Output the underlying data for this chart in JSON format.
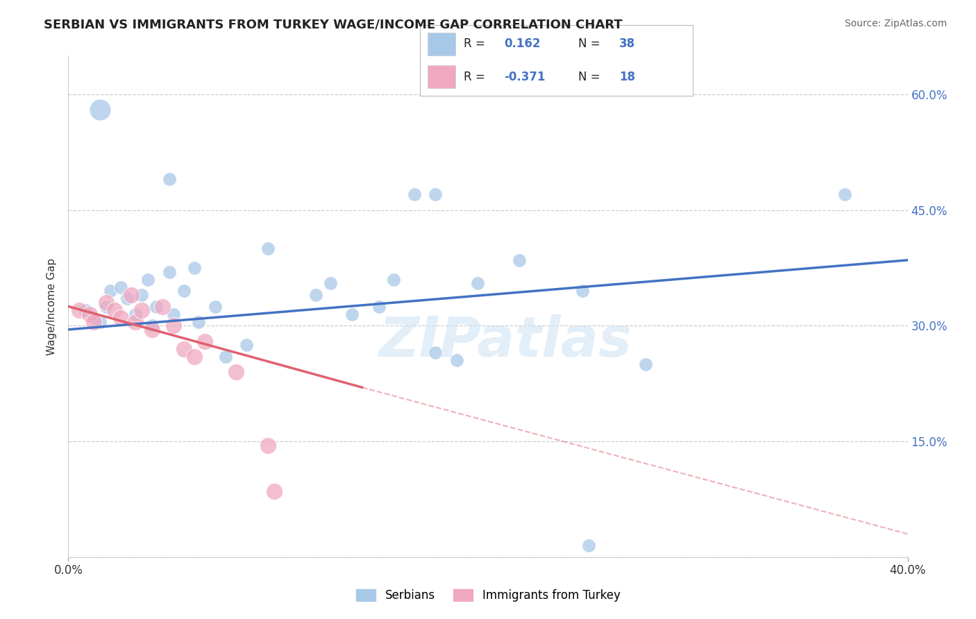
{
  "title": "SERBIAN VS IMMIGRANTS FROM TURKEY WAGE/INCOME GAP CORRELATION CHART",
  "source": "Source: ZipAtlas.com",
  "ylabel": "Wage/Income Gap",
  "ytick_values": [
    0.0,
    0.15,
    0.3,
    0.45,
    0.6
  ],
  "ytick_labels_right": [
    "",
    "15.0%",
    "30.0%",
    "45.0%",
    "60.0%"
  ],
  "xrange": [
    0.0,
    0.4
  ],
  "yrange": [
    0.0,
    0.65
  ],
  "watermark": "ZIPatlas",
  "bottom_legend": [
    "Serbians",
    "Immigrants from Turkey"
  ],
  "serbian_color": "#a8c8e8",
  "turkey_color": "#f0a8c0",
  "serbian_line_color": "#4472c4",
  "turkey_line_color": "#e06070",
  "background_color": "#ffffff",
  "grid_color": "#cccccc",
  "title_color": "#222222",
  "source_color": "#666666",
  "serbian_dots": [
    [
      0.008,
      0.32
    ],
    [
      0.012,
      0.31
    ],
    [
      0.015,
      0.305
    ],
    [
      0.018,
      0.325
    ],
    [
      0.02,
      0.345
    ],
    [
      0.025,
      0.35
    ],
    [
      0.028,
      0.335
    ],
    [
      0.032,
      0.315
    ],
    [
      0.035,
      0.34
    ],
    [
      0.038,
      0.36
    ],
    [
      0.04,
      0.3
    ],
    [
      0.042,
      0.325
    ],
    [
      0.048,
      0.37
    ],
    [
      0.05,
      0.315
    ],
    [
      0.055,
      0.345
    ],
    [
      0.06,
      0.375
    ],
    [
      0.062,
      0.305
    ],
    [
      0.07,
      0.325
    ],
    [
      0.075,
      0.26
    ],
    [
      0.085,
      0.275
    ],
    [
      0.095,
      0.4
    ],
    [
      0.118,
      0.34
    ],
    [
      0.125,
      0.355
    ],
    [
      0.135,
      0.315
    ],
    [
      0.148,
      0.325
    ],
    [
      0.155,
      0.36
    ],
    [
      0.175,
      0.265
    ],
    [
      0.185,
      0.255
    ],
    [
      0.195,
      0.355
    ],
    [
      0.215,
      0.385
    ],
    [
      0.245,
      0.345
    ],
    [
      0.275,
      0.25
    ],
    [
      0.165,
      0.47
    ],
    [
      0.175,
      0.47
    ],
    [
      0.015,
      0.58
    ],
    [
      0.048,
      0.49
    ],
    [
      0.248,
      0.015
    ],
    [
      0.37,
      0.47
    ]
  ],
  "serbian_sizes": [
    200,
    200,
    200,
    200,
    200,
    200,
    200,
    200,
    200,
    200,
    200,
    200,
    200,
    200,
    200,
    200,
    200,
    200,
    200,
    200,
    200,
    200,
    200,
    200,
    200,
    200,
    200,
    200,
    200,
    200,
    200,
    200,
    200,
    200,
    500,
    200,
    200,
    200
  ],
  "turkey_dots": [
    [
      0.005,
      0.32
    ],
    [
      0.01,
      0.315
    ],
    [
      0.012,
      0.305
    ],
    [
      0.018,
      0.33
    ],
    [
      0.022,
      0.32
    ],
    [
      0.025,
      0.31
    ],
    [
      0.03,
      0.34
    ],
    [
      0.032,
      0.305
    ],
    [
      0.035,
      0.32
    ],
    [
      0.04,
      0.295
    ],
    [
      0.045,
      0.325
    ],
    [
      0.05,
      0.3
    ],
    [
      0.055,
      0.27
    ],
    [
      0.06,
      0.26
    ],
    [
      0.065,
      0.28
    ],
    [
      0.08,
      0.24
    ],
    [
      0.095,
      0.145
    ],
    [
      0.098,
      0.085
    ]
  ],
  "turkey_sizes": [
    300,
    300,
    300,
    300,
    300,
    300,
    300,
    300,
    300,
    300,
    300,
    300,
    300,
    300,
    300,
    300,
    300,
    300
  ],
  "serbian_line": {
    "x0": 0.0,
    "x1": 0.4,
    "y0": 0.295,
    "y1": 0.385
  },
  "turkey_line_solid": {
    "x0": 0.0,
    "x1": 0.14,
    "y0": 0.325,
    "y1": 0.22
  },
  "turkey_line_dashed": {
    "x0": 0.14,
    "x1": 0.4,
    "y0": 0.22,
    "y1": 0.03
  },
  "legend_r1_label": "R =  0.162   N = 38",
  "legend_r2_label": "R = -0.371   N = 18"
}
